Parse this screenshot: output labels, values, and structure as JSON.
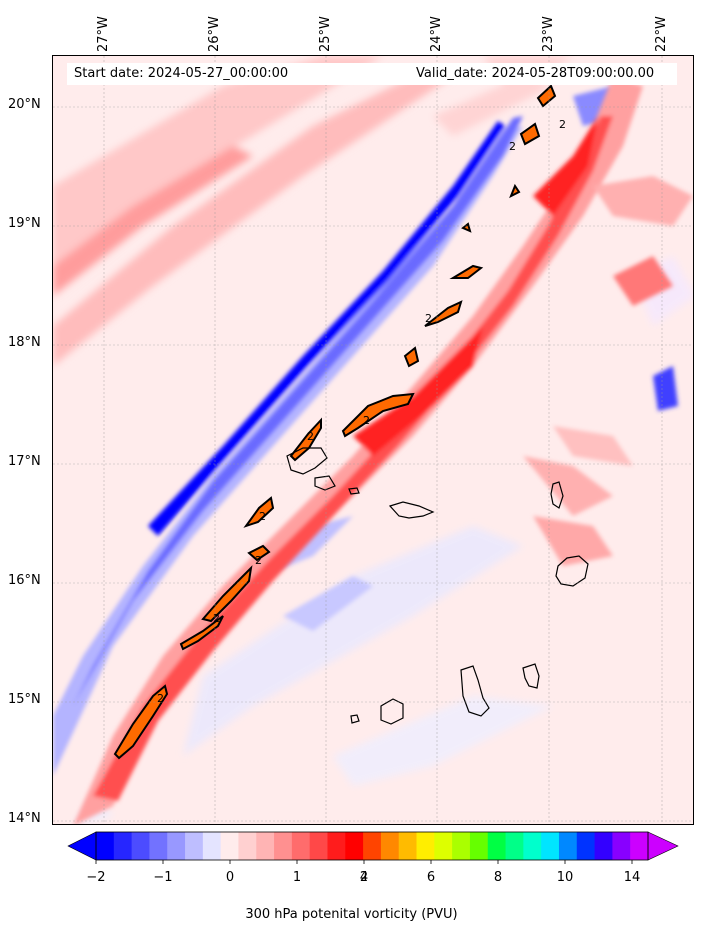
{
  "header": {
    "start_date": "Start date: 2024-05-27_00:00:00",
    "valid_date": "Valid_date: 2024-05-28T09:00:00.00"
  },
  "map": {
    "lon_labels": [
      "27°W",
      "26°W",
      "25°W",
      "24°W",
      "23°W",
      "22°W"
    ],
    "lat_labels": [
      "20°N",
      "19°N",
      "18°N",
      "17°N",
      "16°N",
      "15°N",
      "14°N"
    ],
    "contour_label": "2",
    "gridlines": true,
    "lon_range": [
      -27.4,
      -21.8
    ],
    "lat_range": [
      13.95,
      20.45
    ]
  },
  "colorbar": {
    "ticks": [
      "−2",
      "−1",
      "0",
      "1",
      "2",
      "4",
      "6",
      "8",
      "10",
      "14"
    ],
    "label": "300 hPa potenital vorticity (PVU)",
    "colors": [
      "#0000ff",
      "#2626ff",
      "#4c4cff",
      "#7272ff",
      "#9898ff",
      "#bebeff",
      "#e4e4ff",
      "#ffecec",
      "#ffd0d0",
      "#ffb4b4",
      "#ff9090",
      "#ff6c6c",
      "#ff4848",
      "#ff1c1c",
      "#ff0000",
      "#ff4400",
      "#ff8800",
      "#ffbb00",
      "#ffee00",
      "#ddff00",
      "#aaff00",
      "#66ff00",
      "#00ff44",
      "#00ff88",
      "#00ffcc",
      "#00e5ff",
      "#0088ff",
      "#0033ff",
      "#3300ff",
      "#8800ff",
      "#cc00ff"
    ]
  }
}
